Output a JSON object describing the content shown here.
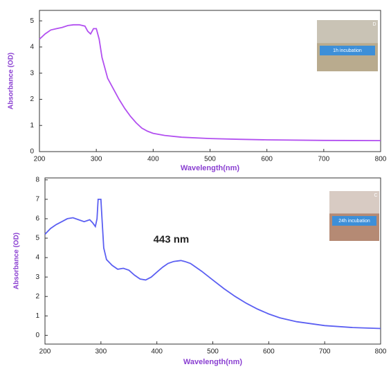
{
  "chart_data": [
    {
      "type": "line",
      "x_label": "Wavelength(nm)",
      "y_label": "Absorbance (OD)",
      "xlim": [
        200,
        800
      ],
      "ylim": [
        0,
        5.4
      ],
      "xticks": [
        200,
        300,
        400,
        500,
        600,
        700,
        800
      ],
      "yticks": [
        0,
        1,
        2,
        3,
        4,
        5
      ],
      "inset": {
        "label": "1h incubation",
        "letter": "D"
      },
      "series": [
        {
          "color": "#b24ff0",
          "x": [
            200,
            210,
            220,
            230,
            240,
            250,
            260,
            270,
            280,
            285,
            290,
            295,
            300,
            305,
            310,
            320,
            330,
            340,
            350,
            360,
            370,
            380,
            390,
            400,
            420,
            450,
            500,
            550,
            600,
            700,
            800
          ],
          "values": [
            4.3,
            4.5,
            4.65,
            4.7,
            4.75,
            4.82,
            4.85,
            4.85,
            4.8,
            4.6,
            4.5,
            4.7,
            4.7,
            4.3,
            3.6,
            2.8,
            2.4,
            2.0,
            1.65,
            1.35,
            1.1,
            0.9,
            0.78,
            0.7,
            0.62,
            0.55,
            0.5,
            0.47,
            0.45,
            0.43,
            0.42
          ]
        }
      ]
    },
    {
      "type": "line",
      "x_label": "Wavelength(nm)",
      "y_label": "Absorbance (OD)",
      "xlim": [
        200,
        800
      ],
      "ylim": [
        -0.45,
        8.1
      ],
      "xticks": [
        200,
        300,
        400,
        500,
        600,
        700,
        800
      ],
      "yticks": [
        0,
        1,
        2,
        3,
        4,
        5,
        6,
        7,
        8
      ],
      "annotation": "443 nm",
      "inset": {
        "label": "24h incubation",
        "letter": "C"
      },
      "series": [
        {
          "color": "#5b5ff2",
          "x": [
            200,
            210,
            220,
            230,
            240,
            250,
            260,
            270,
            280,
            285,
            290,
            293,
            295,
            300,
            302,
            305,
            310,
            320,
            330,
            340,
            350,
            360,
            370,
            380,
            390,
            400,
            410,
            420,
            430,
            443,
            450,
            460,
            480,
            500,
            520,
            540,
            560,
            580,
            600,
            620,
            650,
            700,
            750,
            800
          ],
          "values": [
            5.2,
            5.5,
            5.7,
            5.85,
            6.0,
            6.05,
            5.95,
            5.85,
            5.95,
            5.8,
            5.6,
            6.0,
            7.0,
            7.0,
            6.0,
            4.5,
            3.9,
            3.6,
            3.4,
            3.45,
            3.35,
            3.1,
            2.9,
            2.85,
            3.0,
            3.25,
            3.5,
            3.7,
            3.8,
            3.85,
            3.8,
            3.7,
            3.3,
            2.85,
            2.4,
            2.0,
            1.65,
            1.35,
            1.1,
            0.9,
            0.7,
            0.5,
            0.4,
            0.35
          ]
        }
      ]
    }
  ]
}
